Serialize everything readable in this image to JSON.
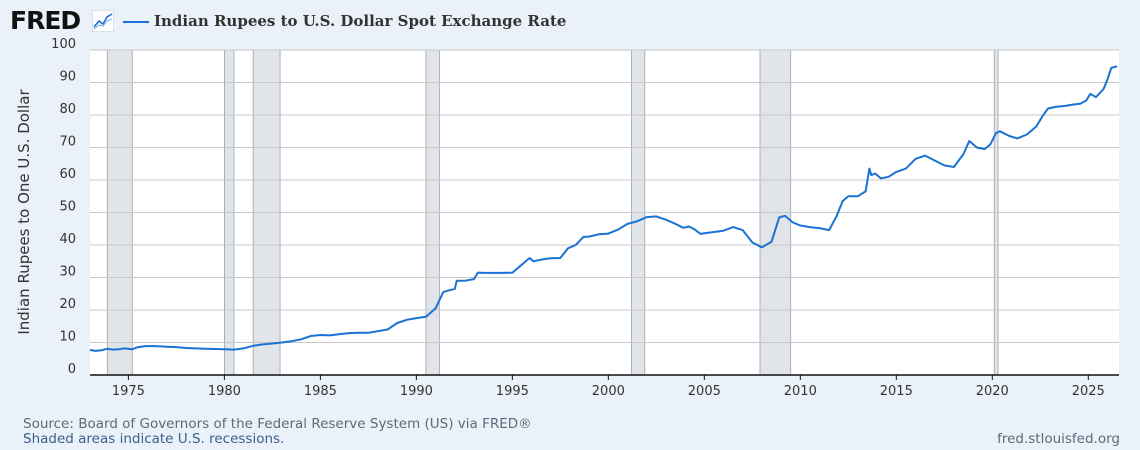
{
  "header": {
    "logo_text": "FRED",
    "logo_icon": "line-chart-icon",
    "title": "Indian Rupees to U.S. Dollar Spot Exchange Rate"
  },
  "footer": {
    "source": "Source: Board of Governors of the Federal Reserve System (US) via FRED®",
    "recessions_note": "Shaded areas indicate U.S. recessions.",
    "site": "fred.stlouisfed.org"
  },
  "colors": {
    "background": "#eaf1f9",
    "plot_background": "#ffffff",
    "line": "#1a73d4",
    "recession_fill": "#e1e5ea",
    "grid": "#c8c8c8"
  },
  "chart_data": {
    "type": "line",
    "ylabel": "Indian Rupees to One U.S. Dollar",
    "xlabel": "",
    "xlim": [
      1973.0,
      2026.6
    ],
    "ylim": [
      0,
      100
    ],
    "y_ticks": [
      0,
      10,
      20,
      30,
      40,
      50,
      60,
      70,
      80,
      90,
      100
    ],
    "x_ticks": [
      1975,
      1980,
      1985,
      1990,
      1995,
      2000,
      2005,
      2010,
      2015,
      2020,
      2025
    ],
    "grid": true,
    "recessions": [
      [
        1973.9,
        1975.2
      ],
      [
        1980.0,
        1980.5
      ],
      [
        1981.5,
        1982.9
      ],
      [
        1990.5,
        1991.2
      ],
      [
        2001.2,
        2001.9
      ],
      [
        2007.9,
        2009.5
      ],
      [
        2020.1,
        2020.3
      ]
    ],
    "series": [
      {
        "x": [
          1973.0,
          1973.3,
          1973.6,
          1973.9,
          1974.2,
          1974.5,
          1974.8,
          1975.2,
          1975.5,
          1975.9,
          1976.3,
          1976.7,
          1977.0,
          1977.5,
          1978.0,
          1978.5,
          1979.0,
          1979.5,
          1980.0,
          1980.5,
          1981.0,
          1981.5,
          1982.0,
          1982.5,
          1983.0,
          1983.5,
          1984.0,
          1984.5,
          1985.0,
          1985.5,
          1986.0,
          1986.5,
          1987.0,
          1987.5,
          1988.0,
          1988.5,
          1989.0,
          1989.5,
          1990.0,
          1990.5,
          1991.0,
          1991.4,
          1991.6,
          1992.0,
          1992.1,
          1992.5,
          1993.0,
          1993.2,
          1993.5,
          1994.0,
          1994.5,
          1995.0,
          1995.3,
          1995.6,
          1995.9,
          1996.1,
          1996.5,
          1997.0,
          1997.5,
          1997.9,
          1998.3,
          1998.7,
          1999.0,
          1999.5,
          2000.0,
          2000.5,
          2001.0,
          2001.5,
          2002.0,
          2002.5,
          2003.0,
          2003.5,
          2003.9,
          2004.2,
          2004.5,
          2004.8,
          2005.0,
          2005.5,
          2006.0,
          2006.5,
          2007.0,
          2007.5,
          2008.0,
          2008.5,
          2008.9,
          2009.2,
          2009.6,
          2010.0,
          2010.5,
          2011.0,
          2011.5,
          2011.9,
          2012.2,
          2012.5,
          2013.0,
          2013.4,
          2013.6,
          2013.7,
          2013.9,
          2014.2,
          2014.6,
          2015.0,
          2015.5,
          2016.0,
          2016.5,
          2017.0,
          2017.5,
          2018.0,
          2018.5,
          2018.8,
          2018.9,
          2019.2,
          2019.6,
          2019.9,
          2020.2,
          2020.4,
          2020.9,
          2021.3,
          2021.8,
          2022.3,
          2022.6,
          2022.9,
          2023.3,
          2023.8,
          2024.2,
          2024.6,
          2024.9,
          2025.1,
          2025.4,
          2025.8,
          2026.0,
          2026.2,
          2026.5
        ],
        "y": [
          7.7,
          7.4,
          7.6,
          8.1,
          7.8,
          7.9,
          8.2,
          7.9,
          8.6,
          8.9,
          8.9,
          8.8,
          8.7,
          8.6,
          8.3,
          8.2,
          8.1,
          8.0,
          7.9,
          7.8,
          8.2,
          9.0,
          9.4,
          9.7,
          10.0,
          10.4,
          11.0,
          12.0,
          12.3,
          12.2,
          12.6,
          12.9,
          13.0,
          13.0,
          13.5,
          14.0,
          16.0,
          17.0,
          17.5,
          17.9,
          20.5,
          25.5,
          25.9,
          26.5,
          29.0,
          29.0,
          29.5,
          31.5,
          31.4,
          31.4,
          31.4,
          31.5,
          33.0,
          34.5,
          36.0,
          35.0,
          35.5,
          35.9,
          36.0,
          39.0,
          40.0,
          42.5,
          42.6,
          43.3,
          43.5,
          44.7,
          46.5,
          47.3,
          48.6,
          48.8,
          47.8,
          46.5,
          45.3,
          45.7,
          44.8,
          43.4,
          43.6,
          44.0,
          44.4,
          45.5,
          44.6,
          40.8,
          39.3,
          41.0,
          48.5,
          49.0,
          47.0,
          46.0,
          45.5,
          45.2,
          44.6,
          49.0,
          53.5,
          55.0,
          55.0,
          56.5,
          63.5,
          61.5,
          62.0,
          60.5,
          61.0,
          62.5,
          63.5,
          66.5,
          67.5,
          66.0,
          64.5,
          64.0,
          68.0,
          72.0,
          71.5,
          70.0,
          69.5,
          71.0,
          74.5,
          75.0,
          73.5,
          72.8,
          74.0,
          76.5,
          79.5,
          82.0,
          82.5,
          82.8,
          83.2,
          83.5,
          84.5,
          86.5,
          85.5,
          88.0,
          91.0,
          94.5,
          95.0
        ]
      }
    ]
  }
}
